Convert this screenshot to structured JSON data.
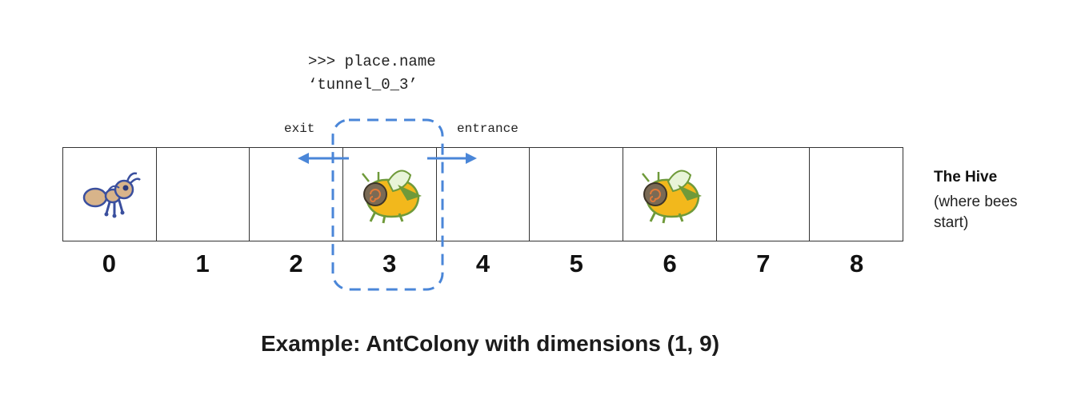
{
  "code": {
    "line1": ">>> place.name",
    "line2": "‘tunnel_0_3’"
  },
  "labels": {
    "exit": "exit",
    "entrance": "entrance"
  },
  "hive": {
    "title": "The Hive",
    "subtitle": "(where bees start)"
  },
  "cells": [
    {
      "index": "0",
      "occupant": "ant"
    },
    {
      "index": "1",
      "occupant": ""
    },
    {
      "index": "2",
      "occupant": ""
    },
    {
      "index": "3",
      "occupant": "bee"
    },
    {
      "index": "4",
      "occupant": ""
    },
    {
      "index": "5",
      "occupant": ""
    },
    {
      "index": "6",
      "occupant": "bee"
    },
    {
      "index": "7",
      "occupant": ""
    },
    {
      "index": "8",
      "occupant": ""
    }
  ],
  "caption": "Example: AntColony with dimensions (1, 9)",
  "colors": {
    "highlight": "#4a86d8",
    "ant_body": "#d8b48a",
    "ant_outline": "#3a4f9e",
    "bee_yellow": "#f2b81c",
    "bee_green": "#6f9a3a",
    "bee_shell": "#7a6a55"
  }
}
